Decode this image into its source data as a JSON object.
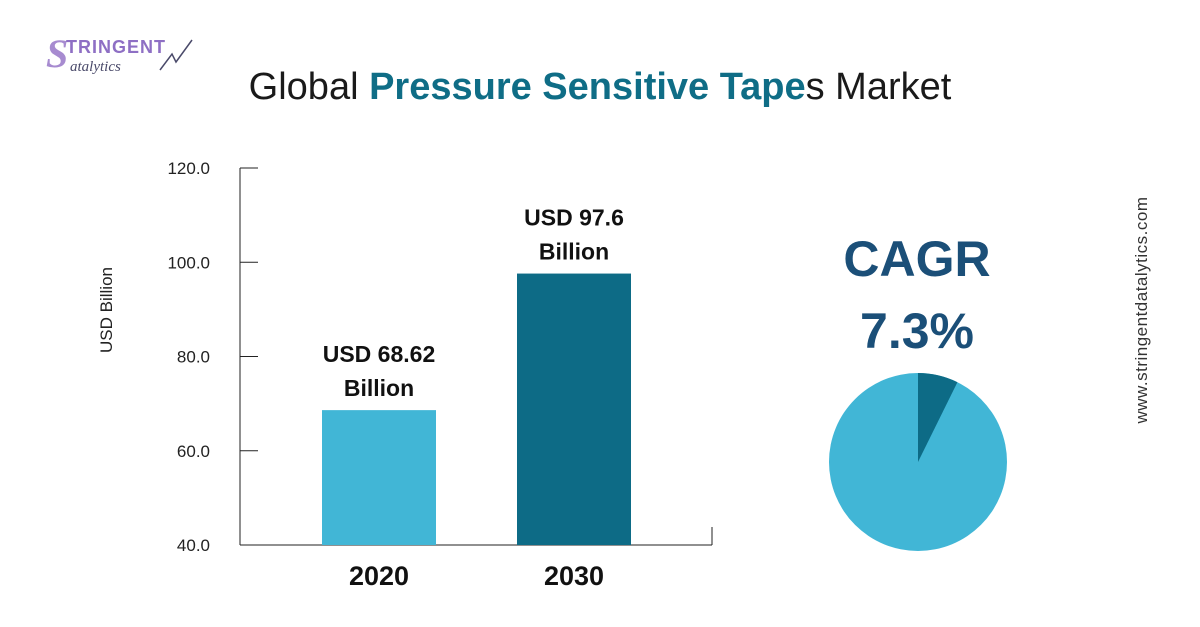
{
  "logo": {
    "initial": "S",
    "top": "TRINGENT",
    "bottom": "atalytics"
  },
  "title": {
    "prefix": "Global ",
    "highlight": "Pressure Sensitive Tape",
    "suffix": "s Market"
  },
  "ylabel": "USD Billion",
  "cagr": {
    "label": "CAGR",
    "value": "7.3%"
  },
  "side_url": "www.stringentdatalytics.com",
  "colors": {
    "bar_2020": "#41b6d6",
    "bar_2030": "#0d6b86",
    "pie_main": "#41b6d6",
    "pie_slice": "#0d6b86",
    "accent": "#0f6d86",
    "cagr": "#1b4f78"
  },
  "chart_data": [
    {
      "type": "bar",
      "categories": [
        "2020",
        "2030"
      ],
      "values": [
        68.62,
        97.6
      ],
      "data_labels": [
        [
          "USD 68.62",
          "Billion"
        ],
        [
          "USD 97.6",
          "Billion"
        ]
      ],
      "ylabel": "USD Billion",
      "ylim": [
        40,
        120
      ],
      "yticks": [
        "40.0",
        "60.0",
        "80.0",
        "100.0",
        "120.0"
      ],
      "grid": false
    },
    {
      "type": "pie",
      "values": [
        92.7,
        7.3
      ]
    }
  ]
}
